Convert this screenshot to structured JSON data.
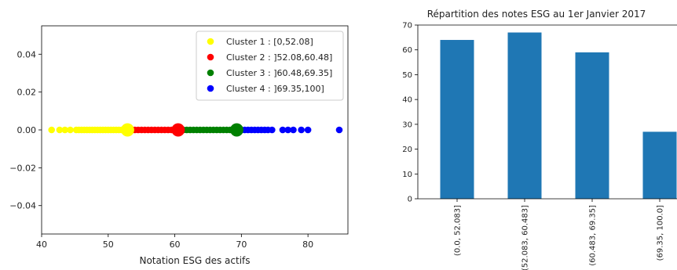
{
  "chart_data": [
    {
      "type": "scatter",
      "title": "",
      "xlabel": "Notation ESG des actifs",
      "ylabel": "",
      "xlim": [
        40,
        86
      ],
      "ylim": [
        -0.055,
        0.055
      ],
      "xticks": [
        40,
        50,
        60,
        70,
        80
      ],
      "yticks": [
        -0.04,
        -0.02,
        0.0,
        0.02,
        0.04
      ],
      "ytick_labels": [
        "−0.04",
        "−0.02",
        "0.00",
        "0.02",
        "0.04"
      ],
      "grid": false,
      "legend_position": "top-right",
      "series": [
        {
          "name": "Cluster 1 : [0,52.08]",
          "color": "#ffff00",
          "x": [
            41.5,
            42.7,
            43.5,
            44.3,
            45.2,
            45.6,
            46.0,
            46.4,
            46.8,
            47.2,
            47.6,
            48.0,
            48.4,
            48.8,
            49.2,
            49.6,
            50.0,
            50.4,
            50.8,
            51.2,
            51.6,
            52.0
          ],
          "y": [
            0,
            0,
            0,
            0,
            0,
            0,
            0,
            0,
            0,
            0,
            0,
            0,
            0,
            0,
            0,
            0,
            0,
            0,
            0,
            0,
            0,
            0
          ],
          "centroid": 52.9
        },
        {
          "name": "Cluster 2 : ]52.08,60.48]",
          "color": "#ff0000",
          "x": [
            53.6,
            54.0,
            54.5,
            55.0,
            55.5,
            56.0,
            56.5,
            57.0,
            57.5,
            58.0,
            58.5,
            59.0,
            59.5,
            60.0,
            60.4
          ],
          "y": [
            0,
            0,
            0,
            0,
            0,
            0,
            0,
            0,
            0,
            0,
            0,
            0,
            0,
            0,
            0
          ],
          "centroid": 60.5
        },
        {
          "name": "Cluster 3 : ]60.48,69.35]",
          "color": "#008000",
          "x": [
            60.8,
            61.3,
            61.8,
            62.3,
            62.8,
            63.3,
            63.8,
            64.3,
            64.8,
            65.3,
            65.8,
            66.3,
            66.8,
            67.3,
            67.8,
            68.3,
            68.8,
            69.2
          ],
          "y": [
            0,
            0,
            0,
            0,
            0,
            0,
            0,
            0,
            0,
            0,
            0,
            0,
            0,
            0,
            0,
            0,
            0,
            0
          ],
          "centroid": 69.3
        },
        {
          "name": "Cluster 4 : ]69.35,100]",
          "color": "#0000ff",
          "x": [
            70.0,
            70.5,
            71.0,
            71.5,
            72.0,
            72.5,
            73.0,
            73.5,
            74.0,
            74.6,
            76.2,
            77.0,
            77.8,
            79.0,
            80.0,
            84.7
          ],
          "y": [
            0,
            0,
            0,
            0,
            0,
            0,
            0,
            0,
            0,
            0,
            0,
            0,
            0,
            0,
            0,
            0
          ],
          "centroid": null
        }
      ]
    },
    {
      "type": "bar",
      "title": "Répartition des notes ESG au 1er Janvier 2017",
      "xlabel": "",
      "ylabel": "",
      "categories": [
        "(0.0, 52.083]",
        "(52.083, 60.483]",
        "(60.483, 69.35]",
        "(69.35, 100.0]"
      ],
      "values": [
        64,
        67,
        59,
        27
      ],
      "ylim": [
        0,
        70
      ],
      "yticks": [
        0,
        10,
        20,
        30,
        40,
        50,
        60,
        70
      ],
      "color": "#1f77b4",
      "grid": false
    }
  ]
}
